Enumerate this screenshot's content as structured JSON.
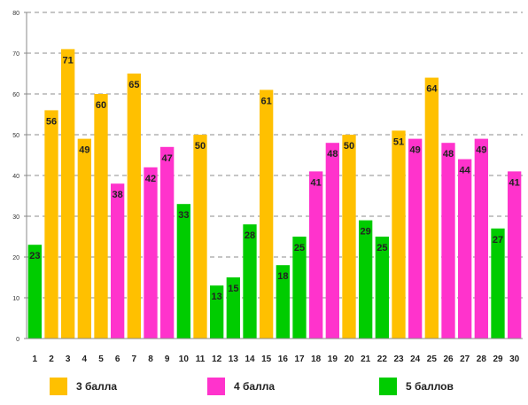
{
  "chart_data": {
    "type": "bar",
    "categories": [
      "1",
      "2",
      "3",
      "4",
      "5",
      "6",
      "7",
      "8",
      "9",
      "10",
      "11",
      "12",
      "13",
      "14",
      "15",
      "16",
      "17",
      "18",
      "19",
      "20",
      "21",
      "22",
      "23",
      "24",
      "25",
      "26",
      "27",
      "28",
      "29",
      "30"
    ],
    "values": [
      23,
      56,
      71,
      49,
      60,
      38,
      65,
      42,
      47,
      33,
      50,
      13,
      15,
      28,
      61,
      18,
      25,
      41,
      48,
      50,
      29,
      25,
      51,
      49,
      64,
      48,
      44,
      49,
      27,
      41
    ],
    "grades": [
      5,
      3,
      3,
      3,
      3,
      4,
      3,
      4,
      4,
      5,
      3,
      5,
      5,
      5,
      3,
      5,
      5,
      4,
      4,
      3,
      5,
      5,
      3,
      4,
      3,
      4,
      4,
      4,
      5,
      4
    ],
    "ylim": [
      0,
      80
    ],
    "yticks": [
      0,
      10,
      20,
      30,
      40,
      50,
      60,
      70,
      80
    ],
    "grid": true,
    "legend": [
      {
        "grade": 3,
        "label": "3 балла",
        "color": "#FFC000"
      },
      {
        "grade": 4,
        "label": "4 балла",
        "color": "#FF33CC"
      },
      {
        "grade": 5,
        "label": "5 баллов",
        "color": "#00CC00"
      }
    ]
  }
}
